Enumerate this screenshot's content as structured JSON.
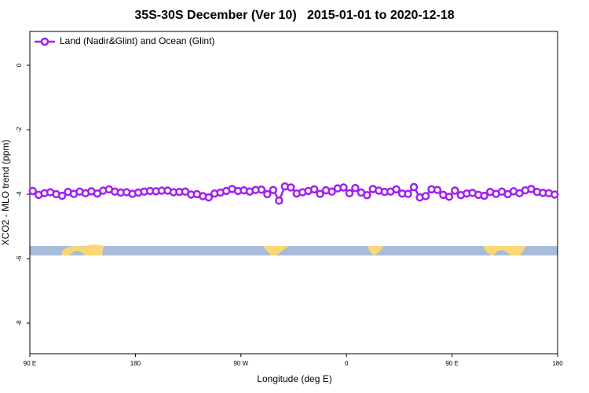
{
  "chart_data": {
    "type": "line",
    "title": "35S-30S December (Ver 10)   2015-01-01 to 2020-12-18",
    "xlabel": "Longitude (deg E)",
    "ylabel": "XCO2 - MLO trend (ppm)",
    "x": [
      92.5,
      97.5,
      102.5,
      107.5,
      112.5,
      117.5,
      122.5,
      127.5,
      132.5,
      137.5,
      142.5,
      147.5,
      152.5,
      157.5,
      162.5,
      167.5,
      172.5,
      177.5,
      182.5,
      187.5,
      192.5,
      197.5,
      202.5,
      207.5,
      212.5,
      217.5,
      222.5,
      227.5,
      232.5,
      237.5,
      242.5,
      247.5,
      252.5,
      257.5,
      262.5,
      267.5,
      272.5,
      277.5,
      282.5,
      287.5,
      292.5,
      297.5,
      302.5,
      307.5,
      312.5,
      317.5,
      322.5,
      327.5,
      332.5,
      337.5,
      342.5,
      347.5,
      352.5,
      357.5,
      362.5,
      367.5,
      372.5,
      377.5,
      382.5,
      387.5,
      392.5,
      397.5,
      402.5,
      407.5,
      412.5,
      417.5,
      422.5,
      427.5,
      432.5,
      437.5,
      442.5,
      447.5,
      452.5,
      457.5,
      462.5,
      467.5,
      472.5,
      477.5,
      482.5,
      487.5,
      492.5,
      497.5,
      502.5,
      507.5,
      512.5,
      517.5,
      522.5,
      527.5,
      532.5,
      537.5
    ],
    "series": [
      {
        "name": "Land (Nadir&Glint) and Ocean (Glint)",
        "color": "#a020f0",
        "values": [
          -3.9,
          -4.02,
          -3.97,
          -3.94,
          -4.0,
          -4.05,
          -3.93,
          -3.99,
          -3.92,
          -3.97,
          -3.91,
          -3.98,
          -3.89,
          -3.85,
          -3.92,
          -3.95,
          -3.94,
          -3.99,
          -3.95,
          -3.92,
          -3.9,
          -3.91,
          -3.89,
          -3.89,
          -3.94,
          -3.93,
          -3.92,
          -4.01,
          -4.0,
          -4.06,
          -4.1,
          -3.98,
          -3.95,
          -3.9,
          -3.84,
          -3.9,
          -3.88,
          -3.92,
          -3.87,
          -3.86,
          -4.0,
          -3.87,
          -4.2,
          -3.76,
          -3.79,
          -3.98,
          -3.94,
          -3.9,
          -3.85,
          -3.99,
          -3.88,
          -3.92,
          -3.82,
          -3.79,
          -3.97,
          -3.81,
          -3.95,
          -4.03,
          -3.84,
          -3.89,
          -3.93,
          -3.92,
          -3.85,
          -3.98,
          -3.99,
          -3.78,
          -4.1,
          -4.06,
          -3.85,
          -3.87,
          -4.02,
          -4.08,
          -3.89,
          -4.03,
          -3.98,
          -3.96,
          -4.02,
          -4.05,
          -3.93,
          -3.99,
          -3.92,
          -4.0,
          -3.91,
          -3.97,
          -3.88,
          -3.84,
          -3.93,
          -3.96,
          -3.97,
          -4.01
        ]
      }
    ],
    "xlim": [
      90,
      540
    ],
    "xticks": [
      {
        "value": 90,
        "label": "90 E"
      },
      {
        "value": 180,
        "label": "180"
      },
      {
        "value": 270,
        "label": "90 W"
      },
      {
        "value": 360,
        "label": "0"
      },
      {
        "value": 450,
        "label": "90 E"
      },
      {
        "value": 540,
        "label": "180"
      }
    ],
    "ylim": [
      -8.95,
      1.05
    ],
    "yticks": [
      0,
      -2,
      -4,
      -6,
      -8
    ],
    "grid": false,
    "legend_position": "top-left"
  }
}
